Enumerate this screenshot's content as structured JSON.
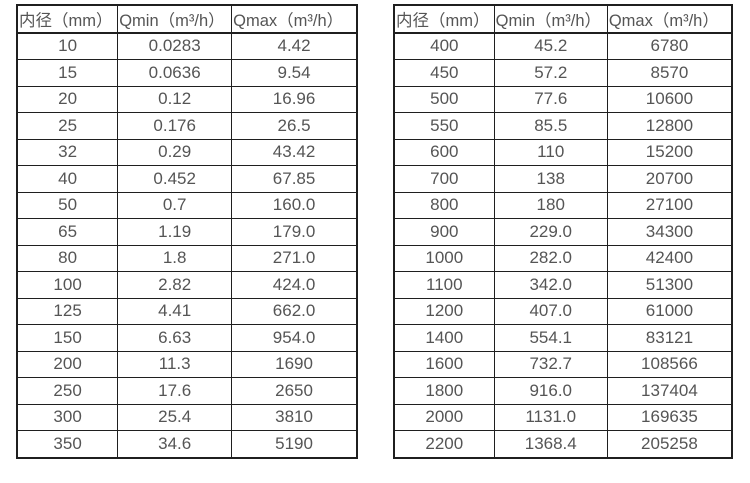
{
  "page": {
    "background_color": "#ffffff",
    "text_color": "#555555",
    "border_color": "#1f1f1f"
  },
  "tables": [
    {
      "name": "small-diameter-spec-table",
      "headers": [
        "内径（mm）",
        "Qmin（m³/h）",
        "Qmax（m³/h）"
      ],
      "rows": [
        [
          "10",
          "0.0283",
          "4.42"
        ],
        [
          "15",
          "0.0636",
          "9.54"
        ],
        [
          "20",
          "0.12",
          "16.96"
        ],
        [
          "25",
          "0.176",
          "26.5"
        ],
        [
          "32",
          "0.29",
          "43.42"
        ],
        [
          "40",
          "0.452",
          "67.85"
        ],
        [
          "50",
          "0.7",
          "160.0"
        ],
        [
          "65",
          "1.19",
          "179.0"
        ],
        [
          "80",
          "1.8",
          "271.0"
        ],
        [
          "100",
          "2.82",
          "424.0"
        ],
        [
          "125",
          "4.41",
          "662.0"
        ],
        [
          "150",
          "6.63",
          "954.0"
        ],
        [
          "200",
          "11.3",
          "1690"
        ],
        [
          "250",
          "17.6",
          "2650"
        ],
        [
          "300",
          "25.4",
          "3810"
        ],
        [
          "350",
          "34.6",
          "5190"
        ]
      ]
    },
    {
      "name": "large-diameter-spec-table",
      "headers": [
        "内径（mm）",
        "Qmin（m³/h）",
        "Qmax（m³/h）"
      ],
      "rows": [
        [
          "400",
          "45.2",
          "6780"
        ],
        [
          "450",
          "57.2",
          "8570"
        ],
        [
          "500",
          "77.6",
          "10600"
        ],
        [
          "550",
          "85.5",
          "12800"
        ],
        [
          "600",
          "110",
          "15200"
        ],
        [
          "700",
          "138",
          "20700"
        ],
        [
          "800",
          "180",
          "27100"
        ],
        [
          "900",
          "229.0",
          "34300"
        ],
        [
          "1000",
          "282.0",
          "42400"
        ],
        [
          "1100",
          "342.0",
          "51300"
        ],
        [
          "1200",
          "407.0",
          "61000"
        ],
        [
          "1400",
          "554.1",
          "83121"
        ],
        [
          "1600",
          "732.7",
          "108566"
        ],
        [
          "1800",
          "916.0",
          "137404"
        ],
        [
          "2000",
          "1131.0",
          "169635"
        ],
        [
          "2200",
          "1368.4",
          "205258"
        ]
      ]
    }
  ]
}
